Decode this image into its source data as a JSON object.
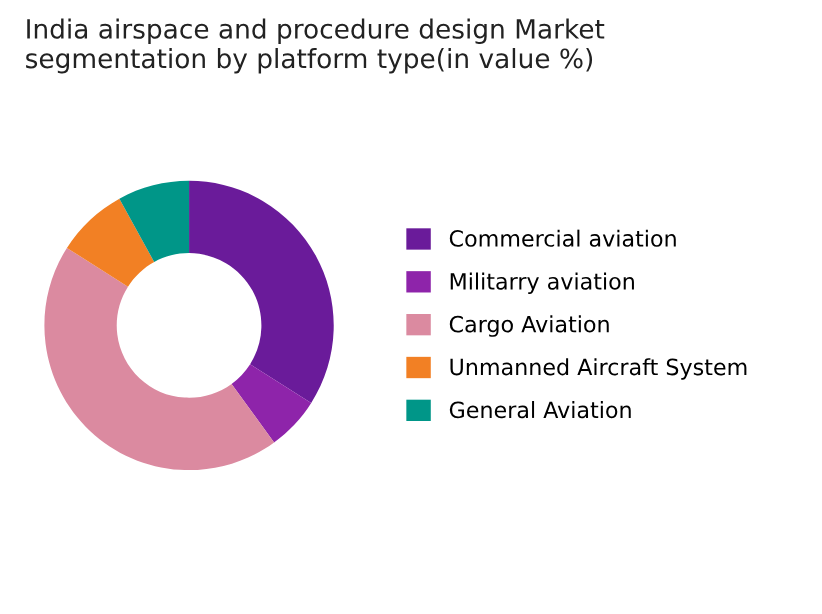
{
  "chart_data": {
    "type": "donut",
    "title": "India airspace and procedure design Market\nsegmentation by platform type(in value %)",
    "categories": [
      "Commercial aviation",
      "Militarry aviation",
      "Cargo Aviation",
      "Unmanned Aircraft System",
      "General Aviation"
    ],
    "values": [
      34,
      6,
      44,
      8,
      8
    ],
    "colors": [
      "#6a1b9a",
      "#8e24aa",
      "#db8aa0",
      "#f28024",
      "#009688"
    ],
    "legend": "right"
  }
}
